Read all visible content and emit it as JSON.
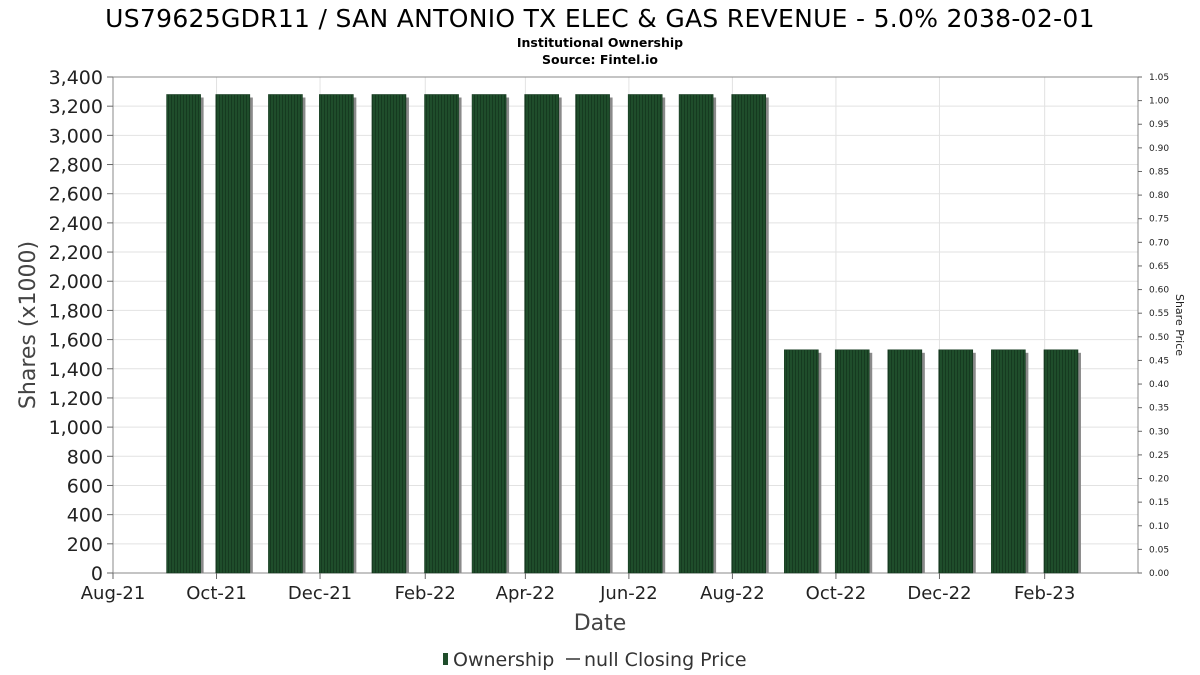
{
  "chart_data": {
    "type": "bar",
    "title": "US79625GDR11 / SAN ANTONIO TX ELEC & GAS REVENUE - 5.0% 2038-02-01",
    "subtitle_lines": [
      "Institutional Ownership",
      "Source: Fintel.io"
    ],
    "xlabel": "Date",
    "ylabel": "Shares (x1000)",
    "y2label": "Share Price",
    "x_tick_labels": [
      "Aug-21",
      "Oct-21",
      "Dec-21",
      "Feb-22",
      "Apr-22",
      "Jun-22",
      "Aug-22",
      "Oct-22",
      "Dec-22",
      "Feb-23"
    ],
    "y_tick_labels": [
      "0",
      "200",
      "400",
      "600",
      "800",
      "1,000",
      "1,200",
      "1,400",
      "1,600",
      "1,800",
      "2,000",
      "2,200",
      "2,400",
      "2,600",
      "2,800",
      "3,000",
      "3,200",
      "3,400"
    ],
    "y2_tick_labels": [
      "0.00",
      "0.05",
      "0.10",
      "0.15",
      "0.20",
      "0.25",
      "0.30",
      "0.35",
      "0.40",
      "0.45",
      "0.50",
      "0.55",
      "0.60",
      "0.65",
      "0.70",
      "0.75",
      "0.80",
      "0.85",
      "0.90",
      "0.95",
      "1.00",
      "1.05"
    ],
    "ylim": [
      0,
      3400
    ],
    "y2lim": [
      0,
      1.05
    ],
    "grid": true,
    "series": [
      {
        "name": "Ownership",
        "color": "#1f4d2b",
        "x": [
          "2021-09-01",
          "2021-09-30",
          "2021-10-31",
          "2021-11-30",
          "2021-12-31",
          "2022-01-31",
          "2022-02-28",
          "2022-03-31",
          "2022-04-30",
          "2022-05-31",
          "2022-06-30",
          "2022-07-31",
          "2022-08-31",
          "2022-09-30",
          "2022-10-31",
          "2022-11-30",
          "2022-12-31",
          "2023-01-31"
        ],
        "values": [
          3280,
          3280,
          3280,
          3280,
          3280,
          3280,
          3280,
          3280,
          3280,
          3280,
          3280,
          3280,
          1530,
          1530,
          1530,
          1530,
          1530,
          1530
        ]
      },
      {
        "name": "null Closing Price",
        "color": "#333333",
        "values": []
      }
    ],
    "legend": {
      "placement": "bottom-center",
      "items": [
        "Ownership",
        "null Closing Price"
      ]
    }
  }
}
